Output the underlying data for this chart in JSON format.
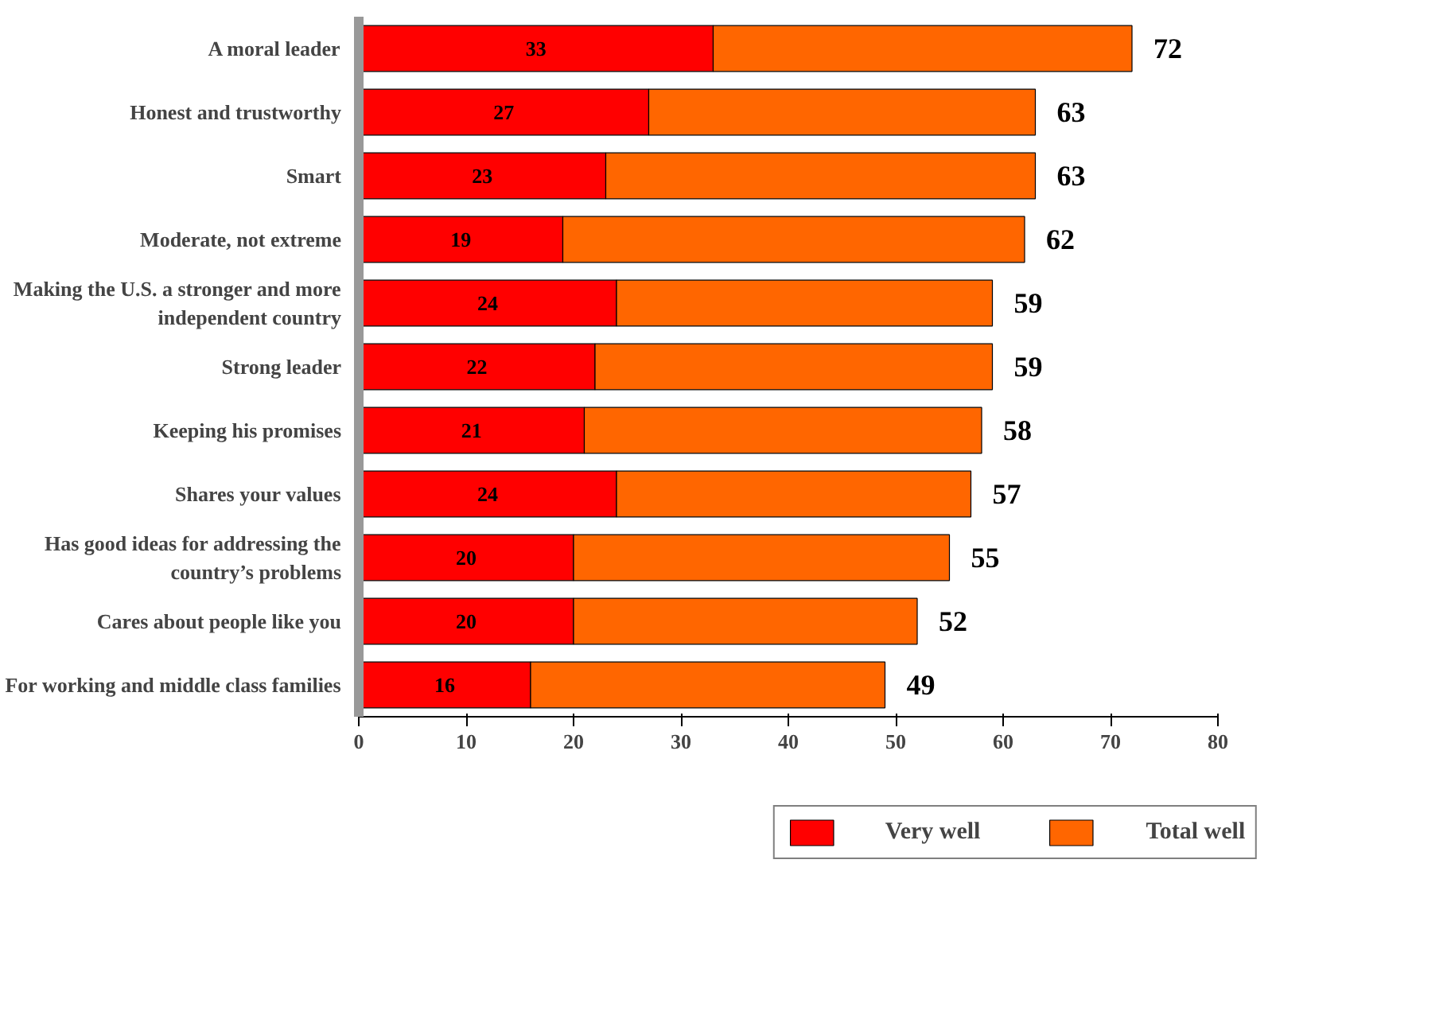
{
  "chart_data": {
    "type": "bar",
    "orientation": "horizontal",
    "stacked": true,
    "categories": [
      "A moral leader",
      "Honest and trustworthy",
      "Smart",
      "Moderate, not extreme",
      "Making the U.S. a stronger and more independent country",
      "Strong leader",
      "Keeping his promises",
      "Shares your values",
      "Has good ideas for addressing the country’s problems",
      "Cares about people like you",
      "For working and middle class families"
    ],
    "series": [
      {
        "name": "Very well",
        "color": "#ff0000",
        "values": [
          33,
          27,
          23,
          19,
          24,
          22,
          21,
          24,
          20,
          20,
          16
        ],
        "value_labels": [
          "33",
          "27",
          "23",
          "19",
          "24",
          "22",
          "21",
          "24",
          "20",
          "20",
          "16"
        ]
      },
      {
        "name": "Total well",
        "color": "#ff6600",
        "values": [
          39,
          36,
          40,
          43,
          35,
          37,
          37,
          33,
          35,
          32,
          33
        ]
      }
    ],
    "totals": [
      "72",
      "63",
      "63",
      "62",
      "59",
      "59",
      "58",
      "57",
      "55",
      "52",
      "49"
    ],
    "xlim": [
      0,
      80
    ],
    "xticks": [
      0,
      10,
      20,
      30,
      40,
      50,
      60,
      70,
      80
    ],
    "grid": false,
    "legend": "bottom"
  }
}
